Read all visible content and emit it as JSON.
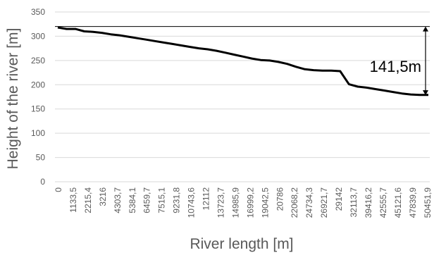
{
  "chart_data": {
    "type": "line",
    "xlabel": "River length [m]",
    "ylabel": "Height of the river [m]",
    "ylim": [
      0,
      350
    ],
    "yticks": [
      0,
      50,
      100,
      150,
      200,
      250,
      300,
      350
    ],
    "grid": "horizontal",
    "x_tick_labels": [
      "0",
      "1133,5",
      "2215,4",
      "3216",
      "4303,7",
      "5384,1",
      "6459,7",
      "7515,1",
      "9231,8",
      "10743,6",
      "12112",
      "13723,7",
      "14985,9",
      "16999,2",
      "19042,5",
      "20786",
      "22068,2",
      "24734,3",
      "26921,7",
      "29142",
      "32113,7",
      "39416,2",
      "42555,7",
      "45121,6",
      "47839,9",
      "50451,9"
    ],
    "series": [
      {
        "color": "#000000",
        "values": [
          318,
          315,
          315,
          310,
          309,
          307,
          304,
          302,
          299,
          296,
          293,
          290,
          287,
          284,
          281,
          278,
          275,
          273,
          270,
          266,
          262,
          258,
          254,
          251,
          250,
          247,
          243,
          237,
          232,
          230,
          229,
          229,
          228,
          201,
          196,
          194,
          191,
          188,
          185,
          182,
          180,
          179,
          179
        ]
      }
    ],
    "annotation": {
      "label": "141,5m",
      "from_y": 320,
      "to_y": 178.5
    }
  }
}
